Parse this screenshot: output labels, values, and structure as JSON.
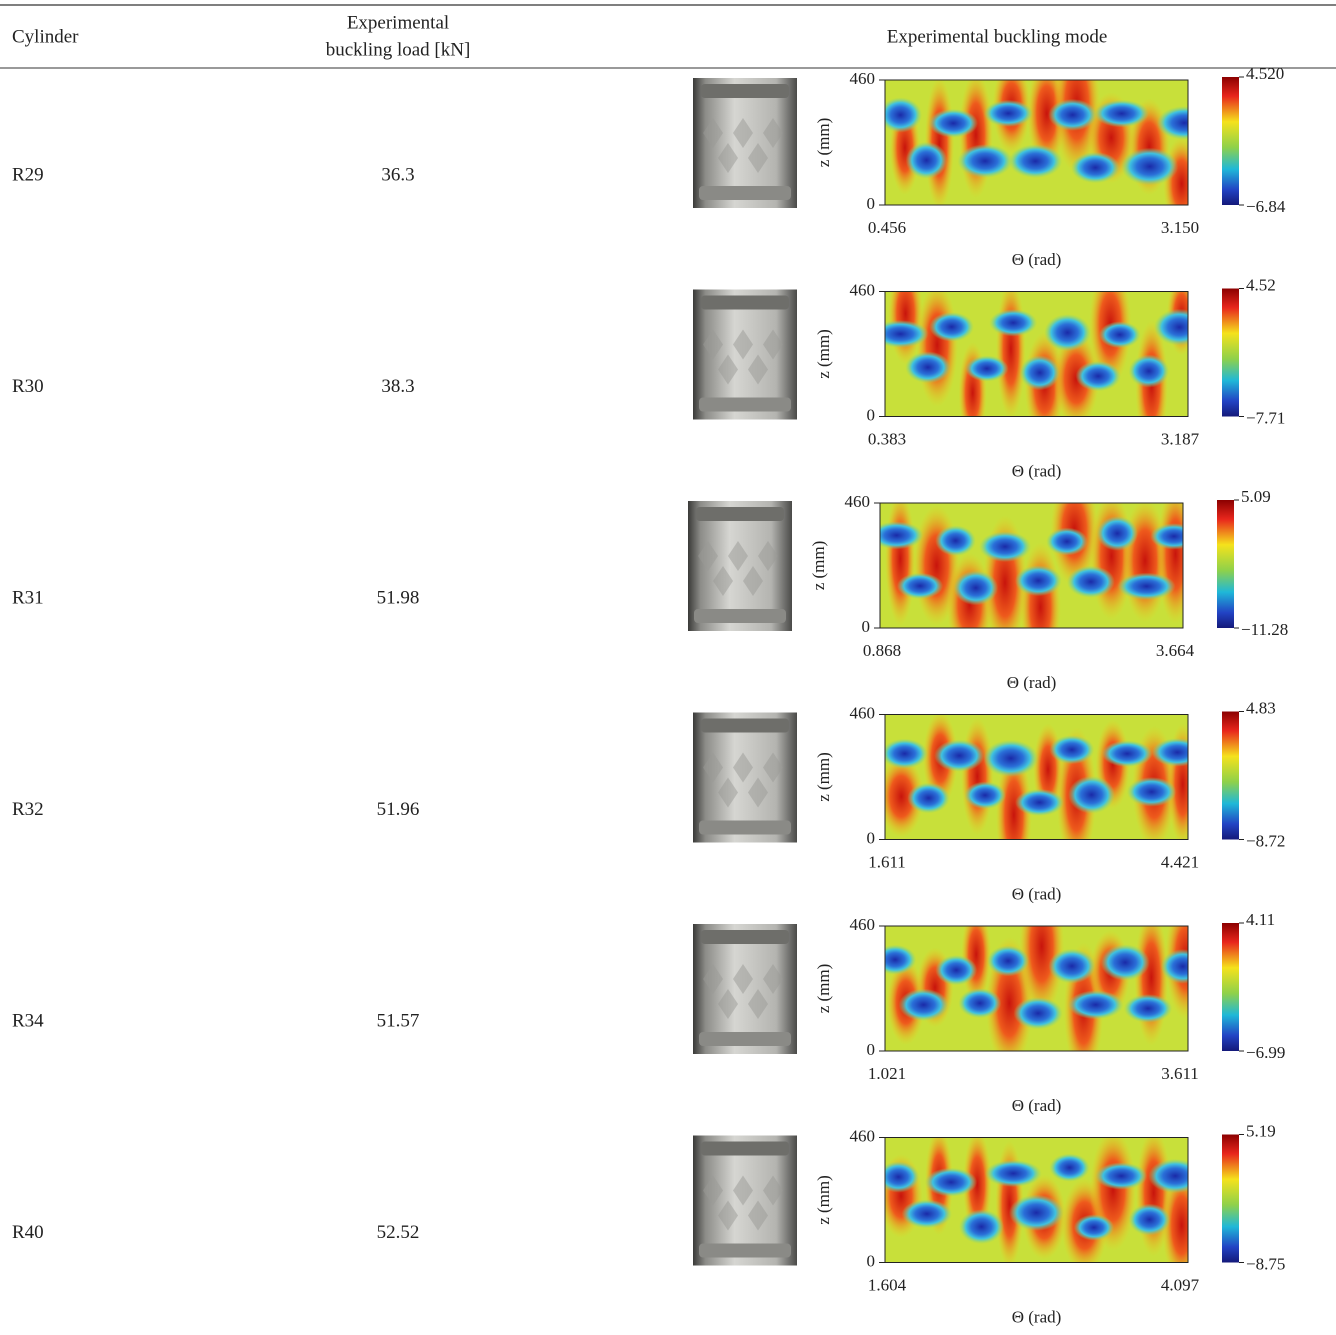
{
  "header": {
    "cylinder": "Cylinder",
    "load_line1": "Experimental",
    "load_line2": "buckling load [kN]",
    "mode": "Experimental buckling mode"
  },
  "rows": [
    {
      "cylinder": "R29",
      "load": "36.3",
      "mode": {
        "y_label": "z (mm)",
        "y_top": "460",
        "y_bottom": "0",
        "x_left": "0.456",
        "x_right": "3.150",
        "x_label": "Θ (rad)",
        "cbar_max": "4.520",
        "cbar_min": "−6.84"
      }
    },
    {
      "cylinder": "R30",
      "load": "38.3",
      "mode": {
        "y_label": "z (mm)",
        "y_top": "460",
        "y_bottom": "0",
        "x_left": "0.383",
        "x_right": "3.187",
        "x_label": "Θ (rad)",
        "cbar_max": "4.52",
        "cbar_min": "−7.71"
      }
    },
    {
      "cylinder": "R31",
      "load": "51.98",
      "mode": {
        "y_label": "z (mm)",
        "y_top": "460",
        "y_bottom": "0",
        "x_left": "0.868",
        "x_right": "3.664",
        "x_label": "Θ (rad)",
        "cbar_max": "5.09",
        "cbar_min": "−11.28"
      }
    },
    {
      "cylinder": "R32",
      "load": "51.96",
      "mode": {
        "y_label": "z (mm)",
        "y_top": "460",
        "y_bottom": "0",
        "x_left": "1.611",
        "x_right": "4.421",
        "x_label": "Θ (rad)",
        "cbar_max": "4.83",
        "cbar_min": "−8.72"
      }
    },
    {
      "cylinder": "R34",
      "load": "51.57",
      "mode": {
        "y_label": "z (mm)",
        "y_top": "460",
        "y_bottom": "0",
        "x_left": "1.021",
        "x_right": "3.611",
        "x_label": "Θ (rad)",
        "cbar_max": "4.11",
        "cbar_min": "−6.99"
      }
    },
    {
      "cylinder": "R40",
      "load": "52.52",
      "mode": {
        "y_label": "z (mm)",
        "y_top": "460",
        "y_bottom": "0",
        "x_left": "1.604",
        "x_right": "4.097",
        "x_label": "Θ (rad)",
        "cbar_max": "5.19",
        "cbar_min": "−8.75"
      }
    }
  ]
}
